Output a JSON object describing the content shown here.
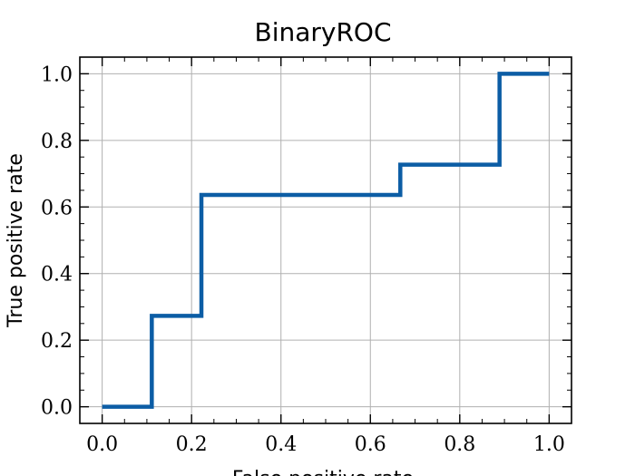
{
  "chart_data": {
    "type": "line",
    "title": "BinaryROC",
    "xlabel": "False positive rate",
    "ylabel": "True positive rate",
    "xlim": [
      -0.05,
      1.05
    ],
    "ylim": [
      -0.05,
      1.05
    ],
    "xticks": [
      0.0,
      0.2,
      0.4,
      0.6,
      0.8,
      1.0
    ],
    "yticks": [
      0.0,
      0.2,
      0.4,
      0.6,
      0.8,
      1.0
    ],
    "xtick_labels": [
      "0.0",
      "0.2",
      "0.4",
      "0.6",
      "0.8",
      "1.0"
    ],
    "ytick_labels": [
      "0.0",
      "0.2",
      "0.4",
      "0.6",
      "0.8",
      "1.0"
    ],
    "grid": true,
    "series": [
      {
        "color": "#0C5DA5",
        "x": [
          0.0,
          0.111,
          0.111,
          0.222,
          0.222,
          0.667,
          0.667,
          0.889,
          0.889,
          1.0
        ],
        "y": [
          0.0,
          0.0,
          0.273,
          0.273,
          0.636,
          0.636,
          0.727,
          0.727,
          1.0,
          1.0
        ]
      }
    ]
  }
}
